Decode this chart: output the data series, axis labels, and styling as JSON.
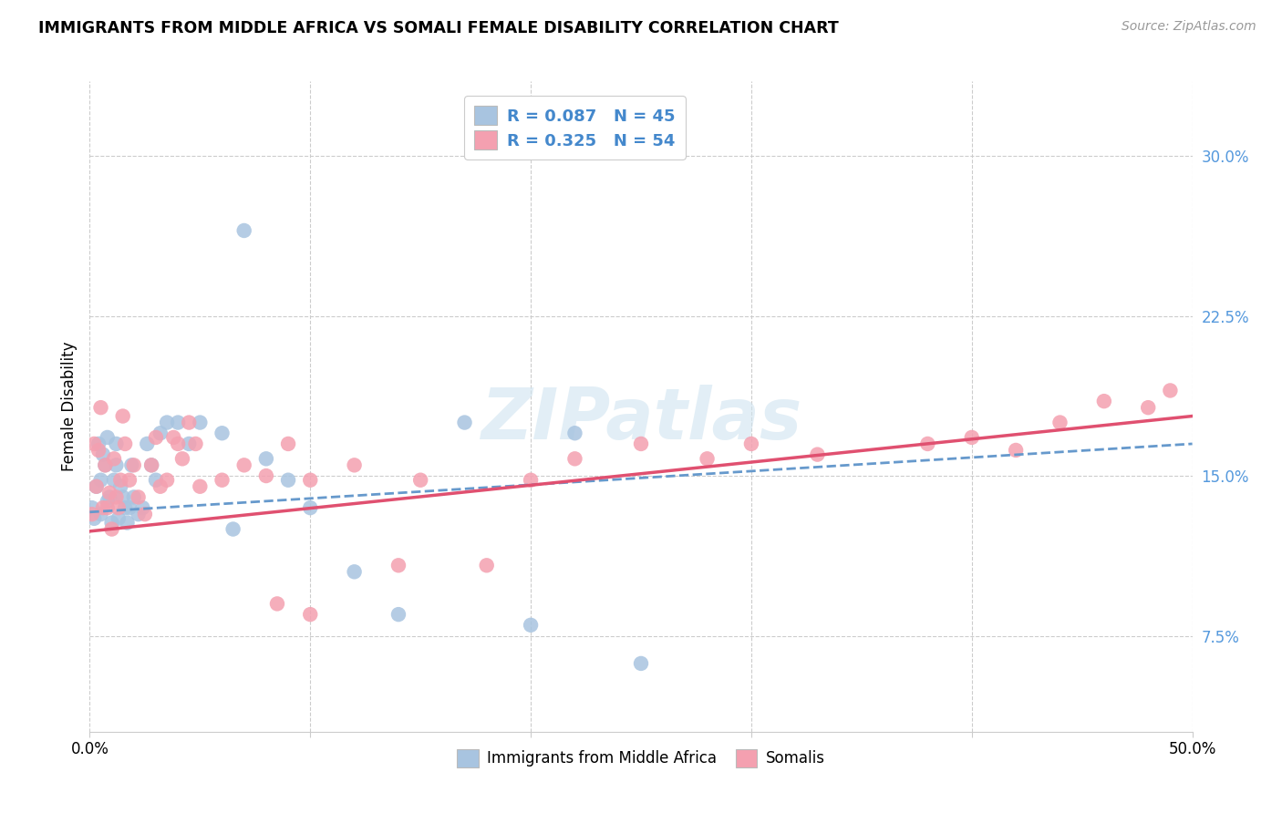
{
  "title": "IMMIGRANTS FROM MIDDLE AFRICA VS SOMALI FEMALE DISABILITY CORRELATION CHART",
  "source": "Source: ZipAtlas.com",
  "ylabel": "Female Disability",
  "ytick_labels": [
    "7.5%",
    "15.0%",
    "22.5%",
    "30.0%"
  ],
  "ytick_values": [
    0.075,
    0.15,
    0.225,
    0.3
  ],
  "xlim": [
    0.0,
    0.5
  ],
  "ylim": [
    0.03,
    0.335
  ],
  "color_blue": "#a8c4e0",
  "color_pink": "#f4a0b0",
  "trendline_blue_color": "#6699cc",
  "trendline_pink_color": "#e05070",
  "watermark": "ZIPatlas",
  "legend_label1": "Immigrants from Middle Africa",
  "legend_label2": "Somalis",
  "blue_x": [
    0.001,
    0.002,
    0.003,
    0.004,
    0.005,
    0.005,
    0.006,
    0.007,
    0.008,
    0.008,
    0.009,
    0.01,
    0.011,
    0.012,
    0.012,
    0.013,
    0.014,
    0.015,
    0.016,
    0.017,
    0.018,
    0.019,
    0.02,
    0.022,
    0.024,
    0.026,
    0.028,
    0.03,
    0.032,
    0.035,
    0.04,
    0.045,
    0.05,
    0.06,
    0.065,
    0.07,
    0.08,
    0.09,
    0.1,
    0.12,
    0.14,
    0.17,
    0.2,
    0.22,
    0.25
  ],
  "blue_y": [
    0.135,
    0.13,
    0.145,
    0.165,
    0.132,
    0.148,
    0.16,
    0.155,
    0.138,
    0.168,
    0.14,
    0.128,
    0.148,
    0.165,
    0.155,
    0.13,
    0.145,
    0.14,
    0.135,
    0.128,
    0.135,
    0.155,
    0.14,
    0.132,
    0.135,
    0.165,
    0.155,
    0.148,
    0.17,
    0.175,
    0.175,
    0.165,
    0.175,
    0.17,
    0.125,
    0.265,
    0.158,
    0.148,
    0.135,
    0.105,
    0.085,
    0.175,
    0.08,
    0.17,
    0.062
  ],
  "pink_x": [
    0.001,
    0.002,
    0.003,
    0.004,
    0.005,
    0.006,
    0.007,
    0.008,
    0.009,
    0.01,
    0.011,
    0.012,
    0.013,
    0.014,
    0.015,
    0.016,
    0.018,
    0.02,
    0.022,
    0.025,
    0.028,
    0.03,
    0.032,
    0.035,
    0.038,
    0.04,
    0.042,
    0.045,
    0.048,
    0.05,
    0.06,
    0.07,
    0.08,
    0.09,
    0.1,
    0.12,
    0.14,
    0.15,
    0.18,
    0.2,
    0.22,
    0.25,
    0.28,
    0.3,
    0.33,
    0.38,
    0.4,
    0.42,
    0.44,
    0.46,
    0.48,
    0.49,
    0.085,
    0.1
  ],
  "pink_y": [
    0.132,
    0.165,
    0.145,
    0.162,
    0.182,
    0.135,
    0.155,
    0.135,
    0.142,
    0.125,
    0.158,
    0.14,
    0.135,
    0.148,
    0.178,
    0.165,
    0.148,
    0.155,
    0.14,
    0.132,
    0.155,
    0.168,
    0.145,
    0.148,
    0.168,
    0.165,
    0.158,
    0.175,
    0.165,
    0.145,
    0.148,
    0.155,
    0.15,
    0.165,
    0.148,
    0.155,
    0.108,
    0.148,
    0.108,
    0.148,
    0.158,
    0.165,
    0.158,
    0.165,
    0.16,
    0.165,
    0.168,
    0.162,
    0.175,
    0.185,
    0.182,
    0.19,
    0.09,
    0.085
  ]
}
